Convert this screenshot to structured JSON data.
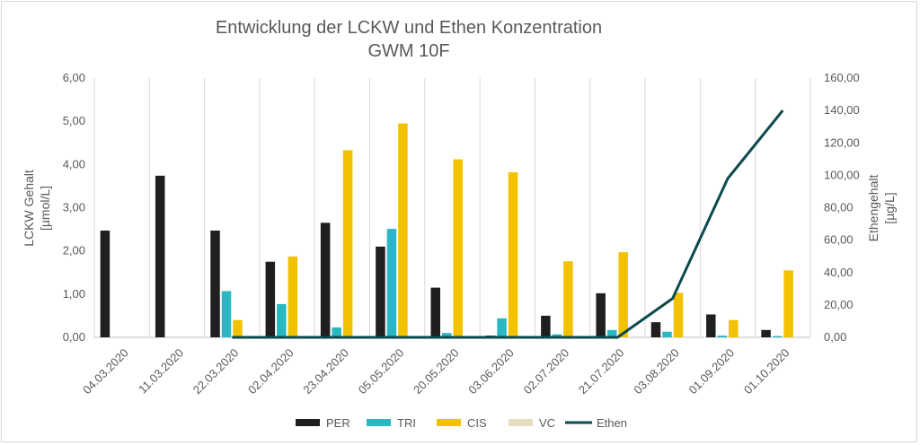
{
  "chart_data": {
    "type": "bar",
    "title": "Entwicklung der LCKW und Ethen Konzentration",
    "subtitle": "GWM 10F",
    "ylabel": "LCKW Gehalt [µmol/L]",
    "ylabel_line1": "LCKW Gehalt",
    "ylabel_line2": "[µmol/L]",
    "y2label": "Ethengehalt [µg/L]",
    "y2label_line1": "Ethengehalt",
    "y2label_line2": "[µg/L]",
    "ylim": [
      0,
      6
    ],
    "y2lim": [
      0,
      160
    ],
    "yticks": [
      "0,00",
      "1,00",
      "2,00",
      "3,00",
      "4,00",
      "5,00",
      "6,00"
    ],
    "y2ticks": [
      "0,00",
      "20,00",
      "40,00",
      "60,00",
      "80,00",
      "100,00",
      "120,00",
      "140,00",
      "160,00"
    ],
    "grid": "vertical category separators",
    "legend_position": "bottom",
    "categories": [
      "04.03.2020",
      "11.03.2020",
      "22.03.2020",
      "02.04.2020",
      "23.04.2020",
      "05.05.2020",
      "20.05.2020",
      "03.06.2020",
      "02.07.2020",
      "21.07.2020",
      "03.08.2020",
      "01.09.2020",
      "01.10.2020"
    ],
    "series": [
      {
        "name": "PER",
        "type": "bar",
        "axis": "left",
        "color": "#1f1f1f",
        "values": [
          2.47,
          3.74,
          2.47,
          1.75,
          2.65,
          2.1,
          1.15,
          0.04,
          0.5,
          1.02,
          0.35,
          0.53,
          0.17
        ]
      },
      {
        "name": "TRI",
        "type": "bar",
        "axis": "left",
        "color": "#2ab7c2",
        "values": [
          null,
          null,
          1.07,
          0.77,
          0.23,
          2.51,
          0.1,
          0.44,
          0.07,
          0.17,
          0.13,
          0.04,
          0.03
        ]
      },
      {
        "name": "CIS",
        "type": "bar",
        "axis": "left",
        "color": "#f2c200",
        "values": [
          null,
          null,
          0.4,
          1.87,
          4.33,
          4.95,
          4.12,
          3.82,
          1.76,
          1.97,
          1.03,
          0.4,
          1.55
        ]
      },
      {
        "name": "VC",
        "type": "bar",
        "axis": "left",
        "color": "#e8dcc0",
        "values": [
          null,
          null,
          null,
          null,
          null,
          null,
          null,
          null,
          null,
          null,
          null,
          null,
          null
        ]
      },
      {
        "name": "Ethen",
        "type": "line",
        "axis": "right",
        "color": "#0b4a4f",
        "values": [
          null,
          null,
          0,
          0,
          0,
          0,
          0,
          0,
          0,
          0,
          24,
          98,
          140
        ]
      }
    ]
  }
}
